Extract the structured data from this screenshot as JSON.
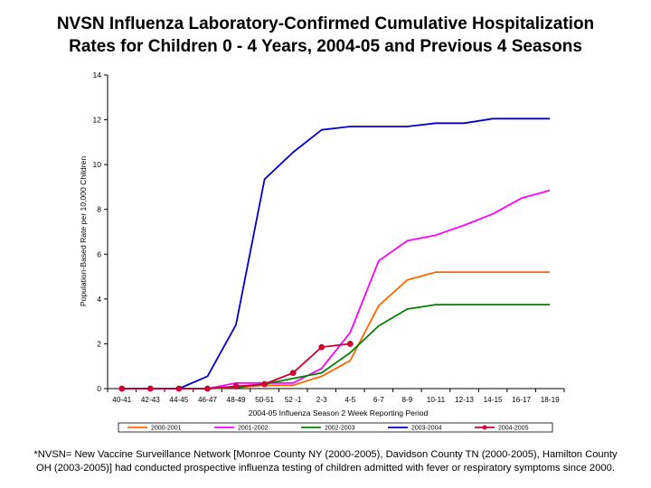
{
  "title_lines": [
    "NVSN Influenza Laboratory-Confirmed Cumulative Hospitalization",
    "Rates for Children 0 - 4 Years, 2004-05 and Previous 4 Seasons"
  ],
  "chart_data": {
    "type": "line",
    "xlabel": "2004-05 Influenza Season 2 Week Reporting Period",
    "ylabel": "Population-Based Rate per 10,000 Children",
    "ylim": [
      0,
      14
    ],
    "yticks": [
      0,
      2,
      4,
      6,
      8,
      10,
      12,
      14
    ],
    "grid": false,
    "legend_position": "bottom",
    "categories": [
      "40-41",
      "42-43",
      "44-45",
      "46-47",
      "48-49",
      "50-51",
      "52 -1",
      "2-3",
      "4-5",
      "6-7",
      "8-9",
      "10-11",
      "12-13",
      "14-15",
      "16-17",
      "18-19"
    ],
    "series": [
      {
        "name": "2000-2001",
        "color": "#ff6600",
        "marker": "none",
        "values": [
          0,
          0,
          0,
          0,
          0.05,
          0.15,
          0.15,
          0.55,
          1.25,
          3.7,
          4.85,
          5.2,
          5.2,
          5.2,
          5.2,
          5.2
        ]
      },
      {
        "name": "2001-2002",
        "color": "#ff00ff",
        "marker": "none",
        "values": [
          0,
          0,
          0,
          0,
          0.25,
          0.25,
          0.25,
          0.9,
          2.5,
          5.7,
          6.6,
          6.85,
          7.3,
          7.8,
          8.5,
          8.85
        ]
      },
      {
        "name": "2002-2003",
        "color": "#008000",
        "marker": "none",
        "values": [
          0,
          0,
          0,
          0,
          0.05,
          0.2,
          0.45,
          0.7,
          1.6,
          2.8,
          3.55,
          3.75,
          3.75,
          3.75,
          3.75,
          3.75
        ]
      },
      {
        "name": "2003-2004",
        "color": "#0000cc",
        "marker": "none",
        "values": [
          0,
          0,
          0,
          0.55,
          2.85,
          9.35,
          10.55,
          11.55,
          11.7,
          11.7,
          11.7,
          11.85,
          11.85,
          12.05,
          12.05,
          12.05
        ]
      },
      {
        "name": "2004-2005",
        "color": "#cc0033",
        "marker": "circle",
        "values": [
          0,
          0,
          0,
          0,
          0.1,
          0.2,
          0.7,
          1.85,
          2.0,
          null,
          null,
          null,
          null,
          null,
          null,
          null
        ]
      }
    ]
  },
  "footnote_lines": [
    "*NVSN= New Vaccine Surveillance Network [Monroe County NY (2000-2005), Davidson County TN (2000-2005), Hamilton County",
    "OH (2003-2005)] had conducted prospective influenza testing of children admitted with fever or respiratory symptoms since 2000."
  ]
}
